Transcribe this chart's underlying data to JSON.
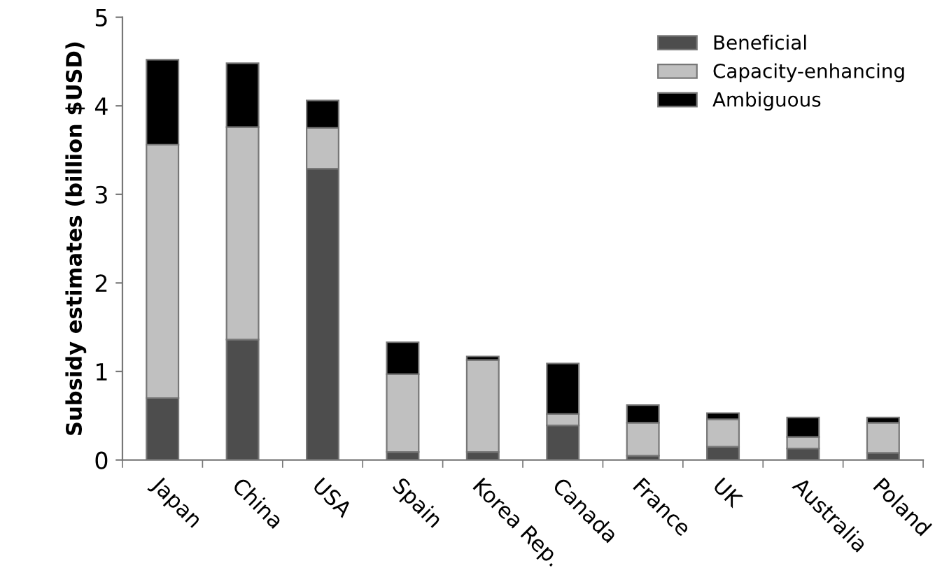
{
  "chart_data": {
    "type": "bar",
    "stacked": true,
    "ylabel": "Subsidy estimates (billion $USD)",
    "categories": [
      "Japan",
      "China",
      "USA",
      "Spain",
      "Korea Rep.",
      "Canada",
      "France",
      "UK",
      "Australia",
      "Poland"
    ],
    "series": [
      {
        "name": "Beneficial",
        "color": "#4d4d4d",
        "values": [
          0.7,
          1.36,
          3.29,
          0.09,
          0.09,
          0.39,
          0.05,
          0.15,
          0.13,
          0.08
        ]
      },
      {
        "name": "Capacity-enhancing",
        "color": "#c0c0c0",
        "values": [
          2.86,
          2.4,
          0.46,
          0.88,
          1.04,
          0.13,
          0.37,
          0.31,
          0.13,
          0.34
        ]
      },
      {
        "name": "Ambiguous",
        "color": "#000000",
        "values": [
          0.96,
          0.72,
          0.31,
          0.36,
          0.04,
          0.57,
          0.2,
          0.07,
          0.22,
          0.06
        ]
      }
    ],
    "ylim": [
      0,
      5
    ],
    "yticks": [
      0,
      1,
      2,
      3,
      4,
      5
    ],
    "grid": false,
    "legend": "top right"
  }
}
